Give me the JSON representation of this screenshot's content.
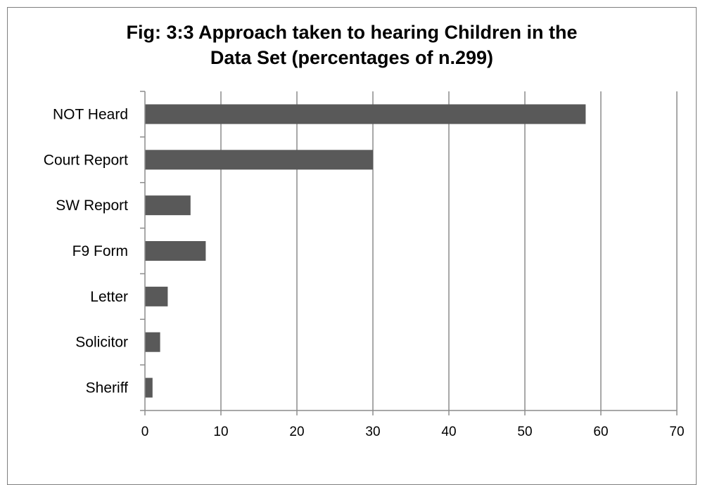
{
  "chart_data": {
    "type": "bar",
    "orientation": "horizontal",
    "title_line1": "Fig: 3:3 Approach taken to hearing Children in the",
    "title_line2": "Data Set (percentages of n.299)",
    "categories": [
      "NOT Heard",
      "Court Report",
      "SW Report",
      "F9 Form",
      "Letter",
      "Solicitor",
      "Sheriff"
    ],
    "values": [
      58,
      30,
      6,
      8,
      3,
      2,
      1
    ],
    "xlim": [
      0,
      70
    ],
    "xticks": [
      "0",
      "10",
      "20",
      "30",
      "40",
      "50",
      "60",
      "70"
    ],
    "grid": "vertical",
    "legend": "none",
    "bar_color": "#595959"
  }
}
